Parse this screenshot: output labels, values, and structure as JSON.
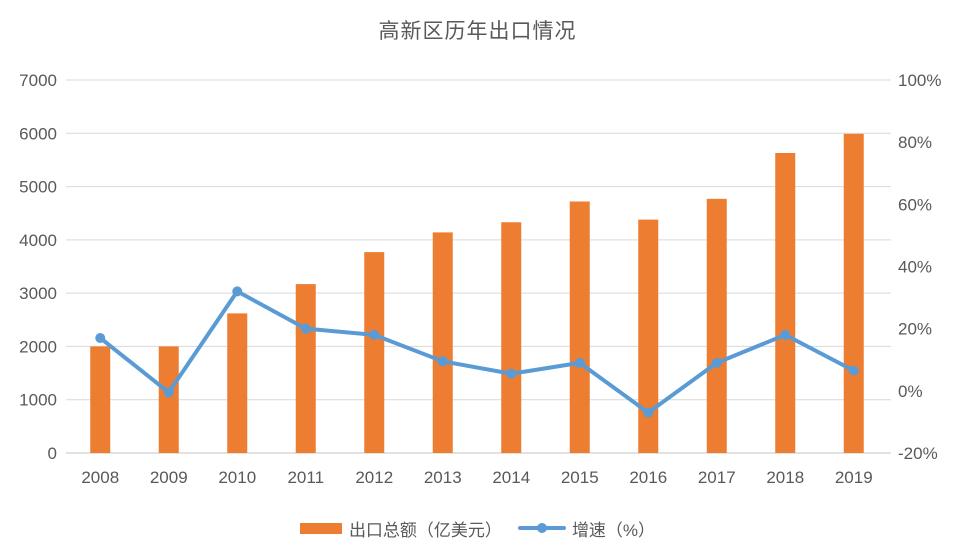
{
  "title": "高新区历年出口情况",
  "colors": {
    "bar": "#ED7D31",
    "line": "#5B9BD5",
    "text": "#595959",
    "gridline": "#D9D9D9",
    "axis_line": "#C6C6C6",
    "background": "#FFFFFF"
  },
  "chart_data": {
    "type": "bar",
    "subtype": "combo-bar-line",
    "title": "高新区历年出口情况",
    "categories": [
      "2008",
      "2009",
      "2010",
      "2011",
      "2012",
      "2013",
      "2014",
      "2015",
      "2016",
      "2017",
      "2018",
      "2019"
    ],
    "series": [
      {
        "name": "出口总额（亿美元）",
        "type": "bar",
        "axis": "left",
        "color": "#ED7D31",
        "values": [
          2000,
          2000,
          2620,
          3170,
          3770,
          4140,
          4330,
          4720,
          4380,
          4770,
          5630,
          5990
        ]
      },
      {
        "name": "增速（%）",
        "type": "line",
        "axis": "right",
        "color": "#5B9BD5",
        "values": [
          17,
          -0.5,
          32,
          20,
          18,
          9.5,
          5.5,
          9,
          -7,
          9,
          18,
          6.5
        ]
      }
    ],
    "left_axis": {
      "min": 0,
      "max": 7000,
      "step": 1000,
      "tick_labels": [
        "0",
        "1000",
        "2000",
        "3000",
        "4000",
        "5000",
        "6000",
        "7000"
      ]
    },
    "right_axis": {
      "min": -20,
      "max": 100,
      "step": 20,
      "tick_labels": [
        "-20%",
        "0%",
        "20%",
        "40%",
        "60%",
        "80%",
        "100%"
      ]
    },
    "grid": true,
    "legend_position": "bottom",
    "xlabel": "",
    "ylabel": ""
  }
}
